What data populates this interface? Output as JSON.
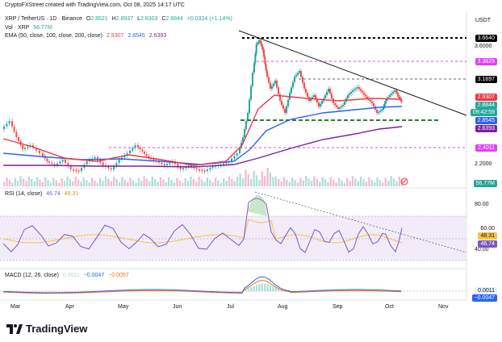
{
  "header": {
    "credit": "CryptoFXStreet created with TradingView.com, Oct 08, 2025 14:17 UTC",
    "currency": "USDT"
  },
  "symbol_line": {
    "symbol": "XRP / TetherUS · 1D · Binance",
    "o_label": "O",
    "o": "2.8521",
    "h_label": "H",
    "h": "2.8937",
    "l_label": "L",
    "l": "2.8303",
    "c_label": "C",
    "c": "2.8844",
    "change": "+0.0324 (+1.14%)"
  },
  "vol_line": {
    "label": "Vol · XRP",
    "value": "56.77M"
  },
  "ema_line": {
    "label": "EMA (50, close, 100, close, 200, close)",
    "v1": "2.9307",
    "v2": "2.8545",
    "v3": "2.6393"
  },
  "rsi_line": {
    "label": "RSI (14, close)",
    "v1": "46.74",
    "v2": "48.31"
  },
  "macd_line": {
    "label": "MACD (12, 26, close)",
    "v1": "0.0011",
    "v2": "−0.0047",
    "v3": "−0.0057"
  },
  "price_axis": {
    "ticks": [
      "3.6000",
      "2.2000"
    ],
    "labels": [
      {
        "text": "3.6640",
        "bg": "#000000",
        "fg": "#ffffff"
      },
      {
        "text": "3.3829",
        "bg": "#e040fb",
        "fg": "#ffffff"
      },
      {
        "text": "3.1897",
        "bg": "#000000",
        "fg": "#ffffff"
      },
      {
        "text": "2.9307",
        "bg": "#f23645",
        "fg": "#ffffff"
      },
      {
        "text": "2.8844",
        "bg": "#26a69a",
        "fg": "#ffffff"
      },
      {
        "text": "09:42:59",
        "bg": "#26a69a",
        "fg": "#ffffff"
      },
      {
        "text": "2.8545",
        "bg": "#2962ff",
        "fg": "#ffffff"
      },
      {
        "text": "2.6393",
        "bg": "#7b1fa2",
        "fg": "#ffffff"
      },
      {
        "text": "2.4011",
        "bg": "#e040fb",
        "fg": "#ffffff"
      },
      {
        "text": "56.77M",
        "bg": "#26a69a",
        "fg": "#ffffff"
      }
    ]
  },
  "rsi_axis": {
    "ticks": [
      "80.00",
      "40.00"
    ],
    "labels": [
      {
        "text": "60.00",
        "bg": "#ffffff",
        "fg": "#131722"
      },
      {
        "text": "48.31",
        "bg": "#f5c542",
        "fg": "#131722"
      },
      {
        "text": "46.74",
        "bg": "#7e57c2",
        "fg": "#ffffff"
      }
    ]
  },
  "macd_axis": {
    "labels": [
      {
        "text": "0.0011",
        "bg": "#e3f2fd",
        "fg": "#131722"
      },
      {
        "text": "−0.0047",
        "bg": "#2962ff",
        "fg": "#ffffff"
      }
    ]
  },
  "time_axis": [
    "Mar",
    "Apr",
    "May",
    "Jun",
    "Jul",
    "Aug",
    "Sep",
    "Oct",
    "Nov"
  ],
  "footer": {
    "brand": "TradingView"
  },
  "colors": {
    "up": "#26a69a",
    "down": "#ef5350",
    "ema50": "#f23645",
    "ema100": "#2962ff",
    "ema200": "#7b1fa2",
    "rsi": "#7e57c2",
    "rsi_ma": "#f5c542",
    "macd": "#2962ff",
    "signal": "#ff6d00",
    "level": "#e040fb"
  }
}
